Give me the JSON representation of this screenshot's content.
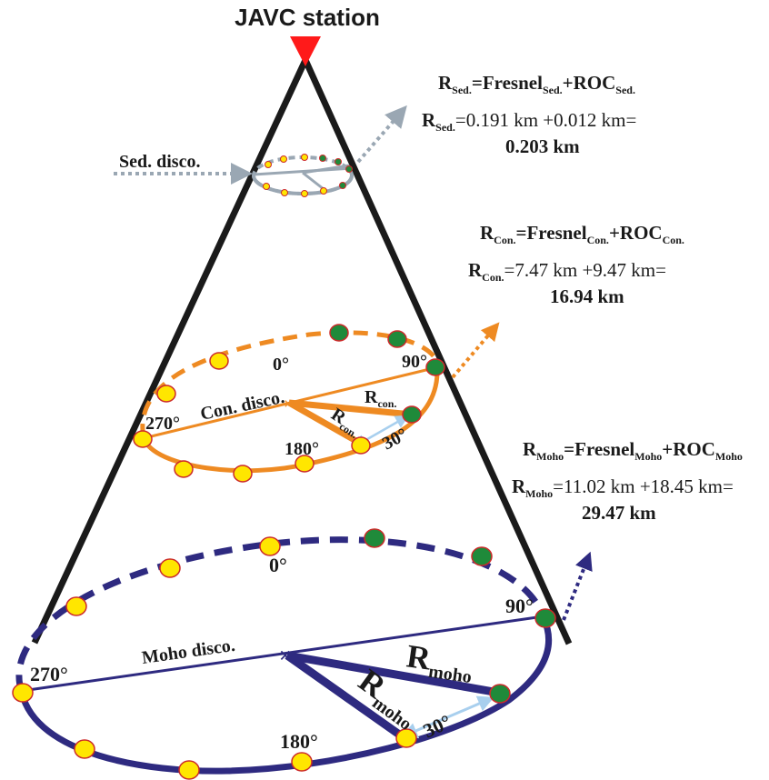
{
  "station": {
    "title": "JAVC station"
  },
  "sed": {
    "arrow_label": "Sed. disco.",
    "formula": {
      "R": "R",
      "R_sub": "Sed.",
      "eq": "=Fresnel",
      "F_sub": "Sed.",
      "plus": "+ROC",
      "ROC_sub": "Sed."
    },
    "value": {
      "R": "R",
      "R_sub": "Sed.",
      "text": "=0.191 km +0.012 km=",
      "result": "0.203 km"
    }
  },
  "con": {
    "disc_label": "Con. disco.",
    "formula": {
      "R": "R",
      "R_sub": "Con.",
      "eq": "=Fresnel",
      "F_sub": "Con.",
      "plus": "+ROC",
      "ROC_sub": "Con."
    },
    "value": {
      "R": "R",
      "R_sub": "Con.",
      "text": "=7.47 km +9.47 km=",
      "result": "16.94 km"
    },
    "angles": {
      "a0": "0°",
      "a90": "90°",
      "a180": "180°",
      "a270": "270°",
      "a30": "30°"
    },
    "radius": {
      "R": "R",
      "sub": "con."
    }
  },
  "moho": {
    "disc_label": "Moho disco.",
    "formula": {
      "R": "R",
      "R_sub": "Moho",
      "eq": "=Fresnel",
      "F_sub": "Moho",
      "plus": "+ROC",
      "ROC_sub": "Moho"
    },
    "value": {
      "R": "R",
      "R_sub": "Moho",
      "text": "=11.02 km +18.45 km=",
      "result": "29.47 km"
    },
    "angles": {
      "a0": "0°",
      "a90": "90°",
      "a180": "180°",
      "a270": "270°",
      "a30": "30°"
    },
    "radius": {
      "R": "R",
      "sub": "moho"
    }
  },
  "colors": {
    "cone": "#1a1a1a",
    "station": "#ff1a1a",
    "sed": "#9aa7b3",
    "con": "#ee8a22",
    "moho": "#2e2a80",
    "yellow": "#ffe600",
    "green": "#1f8a3a",
    "dotEdge": "#cc2a2a",
    "light": "#a8cfee"
  }
}
